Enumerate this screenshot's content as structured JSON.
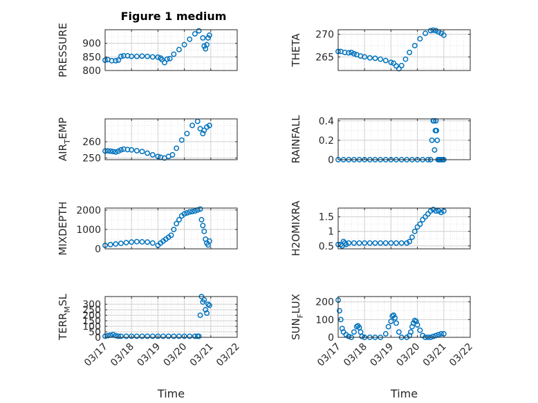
{
  "figure": {
    "title": "Figure 1 medium"
  },
  "colors": {
    "marker": "#0072bd",
    "axis": "#262626",
    "grid": "#cfcfcf",
    "minor_grid": "#e2e2e2"
  },
  "chart_data": [
    {
      "type": "scatter",
      "ylabel": "PRESSURE",
      "xlabel": "",
      "xlim": [
        "03/17",
        "03/22"
      ],
      "xticks": [
        "03/17",
        "03/18",
        "03/19",
        "03/20",
        "03/21",
        "03/22"
      ],
      "ylim": [
        800,
        950
      ],
      "yticks": [
        "800",
        "850",
        "900"
      ],
      "ytick_values": [
        800,
        850,
        900
      ],
      "x": [
        0.0,
        0.1,
        0.25,
        0.4,
        0.5,
        0.6,
        0.7,
        0.85,
        1.0,
        1.2,
        1.4,
        1.6,
        1.8,
        2.0,
        2.1,
        2.15,
        2.25,
        2.35,
        2.45,
        2.6,
        2.8,
        3.0,
        3.2,
        3.4,
        3.55,
        3.7,
        3.75,
        3.8,
        3.85,
        3.9,
        3.95
      ],
      "y": [
        838,
        840,
        836,
        836,
        838,
        852,
        854,
        854,
        852,
        852,
        853,
        852,
        850,
        849,
        846,
        840,
        829,
        842,
        844,
        860,
        877,
        895,
        915,
        935,
        946,
        920,
        890,
        880,
        895,
        920,
        930
      ]
    },
    {
      "type": "scatter",
      "ylabel": "THETA",
      "xlabel": "",
      "xlim": [
        "03/17",
        "03/22"
      ],
      "xticks": [
        "03/17",
        "03/18",
        "03/19",
        "03/20",
        "03/21",
        "03/22"
      ],
      "ylim": [
        262,
        271
      ],
      "yticks": [
        "265",
        "270"
      ],
      "ytick_values": [
        265,
        270
      ],
      "x": [
        0.0,
        0.1,
        0.25,
        0.4,
        0.5,
        0.6,
        0.7,
        0.85,
        1.0,
        1.2,
        1.4,
        1.6,
        1.8,
        2.0,
        2.1,
        2.2,
        2.3,
        2.4,
        2.55,
        2.7,
        2.9,
        3.1,
        3.3,
        3.5,
        3.6,
        3.7,
        3.8,
        3.9,
        4.0
      ],
      "y": [
        266.2,
        266.2,
        266.0,
        265.9,
        266.0,
        265.7,
        265.5,
        265.2,
        265.0,
        264.8,
        264.7,
        264.5,
        264.2,
        263.8,
        263.6,
        263.0,
        262.4,
        263.1,
        264.5,
        266.0,
        267.5,
        269.0,
        270.2,
        270.8,
        270.9,
        270.8,
        270.5,
        270.2,
        269.8
      ]
    },
    {
      "type": "scatter",
      "ylabel": "AIR_TEMP",
      "xlabel": "",
      "xlim": [
        "03/17",
        "03/22"
      ],
      "xticks": [
        "03/17",
        "03/18",
        "03/19",
        "03/20",
        "03/21",
        "03/22"
      ],
      "ylim": [
        249,
        274
      ],
      "yticks": [
        "250",
        "260"
      ],
      "ytick_values": [
        250,
        260
      ],
      "x": [
        0.0,
        0.1,
        0.2,
        0.3,
        0.4,
        0.5,
        0.6,
        0.7,
        0.85,
        1.0,
        1.2,
        1.4,
        1.6,
        1.8,
        2.0,
        2.1,
        2.25,
        2.4,
        2.55,
        2.7,
        2.9,
        3.1,
        3.3,
        3.5,
        3.6,
        3.7,
        3.75,
        3.85,
        3.95
      ],
      "y": [
        254.3,
        254.4,
        254.2,
        254.0,
        253.7,
        254.2,
        255.0,
        255.5,
        255.2,
        255.0,
        254.5,
        254.0,
        253.0,
        252.0,
        251.0,
        250.5,
        250.0,
        251.0,
        252.0,
        256.0,
        261.0,
        265.0,
        270.0,
        272.5,
        268.0,
        265.0,
        267.0,
        269.0,
        270.0
      ]
    },
    {
      "type": "scatter",
      "ylabel": "RAINFALL",
      "xlabel": "",
      "xlim": [
        "03/17",
        "03/22"
      ],
      "xticks": [
        "03/17",
        "03/18",
        "03/19",
        "03/20",
        "03/21",
        "03/22"
      ],
      "ylim": [
        0,
        0.42
      ],
      "yticks": [
        "0",
        "0.2",
        "0.4"
      ],
      "ytick_values": [
        0,
        0.2,
        0.4
      ],
      "x": [
        0.0,
        0.2,
        0.4,
        0.6,
        0.8,
        1.0,
        1.2,
        1.4,
        1.6,
        1.8,
        2.0,
        2.2,
        2.4,
        2.6,
        2.8,
        3.0,
        3.2,
        3.4,
        3.5,
        3.55,
        3.6,
        3.62,
        3.65,
        3.68,
        3.7,
        3.72,
        3.75,
        3.78,
        3.82,
        3.85,
        3.9,
        3.95,
        4.0
      ],
      "y": [
        0,
        0,
        0,
        0,
        0,
        0,
        0,
        0,
        0,
        0,
        0,
        0,
        0,
        0,
        0,
        0,
        0,
        0,
        0,
        0.2,
        0.4,
        0.4,
        0.1,
        0.3,
        0.4,
        0.3,
        0.2,
        0,
        0,
        0,
        0,
        0,
        0
      ]
    },
    {
      "type": "scatter",
      "ylabel": "MIXDEPTH",
      "xlabel": "",
      "xlim": [
        "03/17",
        "03/22"
      ],
      "xticks": [
        "03/17",
        "03/18",
        "03/19",
        "03/20",
        "03/21",
        "03/22"
      ],
      "ylim": [
        0,
        2100
      ],
      "yticks": [
        "0",
        "1000",
        "2000"
      ],
      "ytick_values": [
        0,
        1000,
        2000
      ],
      "x": [
        0.0,
        0.2,
        0.4,
        0.6,
        0.8,
        1.0,
        1.2,
        1.4,
        1.6,
        1.8,
        2.0,
        2.1,
        2.2,
        2.3,
        2.4,
        2.5,
        2.6,
        2.7,
        2.8,
        2.9,
        3.0,
        3.1,
        3.2,
        3.3,
        3.4,
        3.5,
        3.6,
        3.65,
        3.7,
        3.75,
        3.8,
        3.85,
        3.9,
        3.95
      ],
      "y": [
        180,
        220,
        250,
        280,
        320,
        350,
        370,
        360,
        350,
        300,
        180,
        300,
        400,
        500,
        600,
        700,
        1000,
        1300,
        1500,
        1700,
        1800,
        1850,
        1900,
        1920,
        1950,
        2000,
        2050,
        1500,
        1200,
        900,
        500,
        300,
        200,
        400
      ]
    },
    {
      "type": "scatter",
      "ylabel": "H2OMIXRA",
      "xlabel": "",
      "xlim": [
        "03/17",
        "03/22"
      ],
      "xticks": [
        "03/17",
        "03/18",
        "03/19",
        "03/20",
        "03/21",
        "03/22"
      ],
      "ylim": [
        0.4,
        1.8
      ],
      "yticks": [
        "0.5",
        "1",
        "1.5"
      ],
      "ytick_values": [
        0.5,
        1,
        1.5
      ],
      "x": [
        0.0,
        0.1,
        0.15,
        0.2,
        0.25,
        0.3,
        0.4,
        0.6,
        0.8,
        1.0,
        1.2,
        1.4,
        1.6,
        1.8,
        2.0,
        2.2,
        2.4,
        2.6,
        2.7,
        2.8,
        2.9,
        3.0,
        3.1,
        3.2,
        3.3,
        3.4,
        3.5,
        3.6,
        3.7,
        3.8,
        3.9,
        4.0
      ],
      "y": [
        0.55,
        0.55,
        0.5,
        0.65,
        0.6,
        0.55,
        0.6,
        0.6,
        0.6,
        0.6,
        0.6,
        0.6,
        0.6,
        0.6,
        0.6,
        0.6,
        0.6,
        0.6,
        0.65,
        0.8,
        1.0,
        1.15,
        1.25,
        1.4,
        1.5,
        1.6,
        1.7,
        1.75,
        1.7,
        1.7,
        1.65,
        1.7
      ]
    },
    {
      "type": "scatter",
      "ylabel": "TERR_MSL",
      "xlabel": "Time",
      "xlim": [
        "03/17",
        "03/22"
      ],
      "xticks": [
        "03/17",
        "03/18",
        "03/19",
        "03/20",
        "03/21",
        "03/22"
      ],
      "ylim": [
        0,
        370
      ],
      "yticks": [
        "0",
        "50",
        "100",
        "150",
        "200",
        "250",
        "300"
      ],
      "ytick_values": [
        0,
        50,
        100,
        150,
        200,
        250,
        300
      ],
      "x": [
        0.0,
        0.1,
        0.2,
        0.3,
        0.4,
        0.5,
        0.6,
        0.8,
        1.0,
        1.2,
        1.4,
        1.6,
        1.8,
        2.0,
        2.2,
        2.4,
        2.6,
        2.8,
        3.0,
        3.2,
        3.4,
        3.5,
        3.55,
        3.6,
        3.65,
        3.7,
        3.75,
        3.8,
        3.85,
        3.9,
        3.95
      ],
      "y": [
        10,
        15,
        20,
        25,
        15,
        10,
        10,
        10,
        10,
        10,
        10,
        10,
        10,
        10,
        10,
        10,
        10,
        10,
        10,
        10,
        10,
        10,
        10,
        200,
        370,
        320,
        340,
        250,
        220,
        300,
        290
      ]
    },
    {
      "type": "scatter",
      "ylabel": "SUN_FLUX",
      "xlabel": "Time",
      "xlim": [
        "03/17",
        "03/22"
      ],
      "xticks": [
        "03/17",
        "03/18",
        "03/19",
        "03/20",
        "03/21",
        "03/22"
      ],
      "ylim": [
        0,
        230
      ],
      "yticks": [
        "0",
        "100",
        "200"
      ],
      "ytick_values": [
        0,
        100,
        200
      ],
      "x": [
        0.0,
        0.05,
        0.1,
        0.15,
        0.2,
        0.3,
        0.4,
        0.5,
        0.6,
        0.7,
        0.75,
        0.8,
        0.85,
        0.9,
        1.0,
        1.2,
        1.4,
        1.6,
        1.8,
        1.9,
        2.0,
        2.05,
        2.1,
        2.15,
        2.2,
        2.3,
        2.4,
        2.6,
        2.7,
        2.75,
        2.8,
        2.85,
        2.9,
        2.95,
        3.0,
        3.1,
        3.2,
        3.3,
        3.4,
        3.5,
        3.6,
        3.7,
        3.8,
        3.9,
        4.0
      ],
      "y": [
        210,
        150,
        100,
        50,
        30,
        15,
        5,
        0,
        30,
        60,
        65,
        55,
        30,
        5,
        0,
        0,
        0,
        0,
        20,
        60,
        90,
        120,
        125,
        110,
        80,
        30,
        0,
        0,
        10,
        30,
        60,
        80,
        95,
        90,
        70,
        40,
        10,
        0,
        0,
        0,
        5,
        10,
        15,
        20,
        20
      ]
    }
  ]
}
